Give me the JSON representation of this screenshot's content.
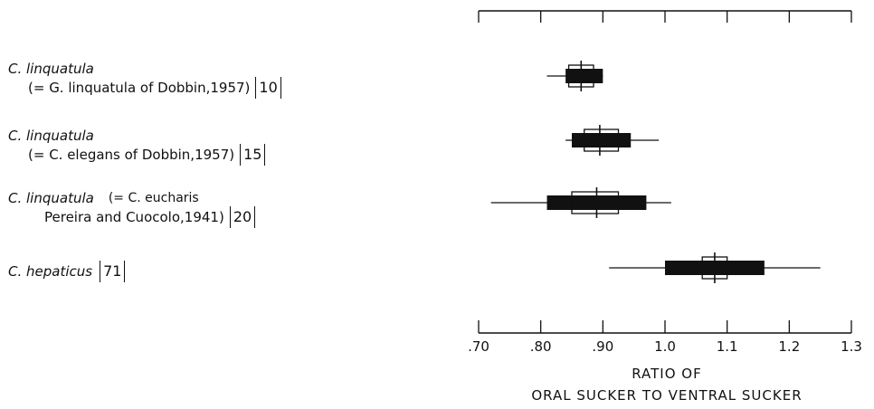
{
  "chart_data": {
    "type": "box",
    "xlabel_line1": "RATIO OF",
    "xlabel_line2": "ORAL  SUCKER  TO  VENTRAL  SUCKER",
    "xlim": [
      0.7,
      1.3
    ],
    "ticks": [
      0.7,
      0.8,
      0.9,
      1.0,
      1.1,
      1.2,
      1.3
    ],
    "tick_labels": [
      ".70",
      ".80",
      ".90",
      "1.0",
      "1.1",
      "1.2",
      "1.3"
    ],
    "series": [
      {
        "label_line1": "C. linquatula",
        "label_line2": "(= G. linquatula of Dobbin,1957)",
        "n_label": "10",
        "range": [
          0.81,
          0.9
        ],
        "sd": [
          0.84,
          0.9
        ],
        "ci": [
          0.845,
          0.885
        ],
        "mean": 0.865
      },
      {
        "label_line1": "C. linquatula",
        "label_line2": "(= C. elegans of Dobbin,1957)",
        "n_label": "15",
        "range": [
          0.84,
          0.99
        ],
        "sd": [
          0.85,
          0.945
        ],
        "ci": [
          0.87,
          0.925
        ],
        "mean": 0.895
      },
      {
        "label_line1": "C. linquatula",
        "label_line1_extra": "(= C. eucharis",
        "label_line2": "Pereira and Cuocolo,1941)",
        "n_label": "20",
        "range": [
          0.72,
          1.01
        ],
        "sd": [
          0.81,
          0.97
        ],
        "ci": [
          0.85,
          0.925
        ],
        "mean": 0.89
      },
      {
        "label_line1": "C. hepaticus",
        "label_line2": "",
        "n_label": "71",
        "range": [
          0.91,
          1.25
        ],
        "sd": [
          1.0,
          1.16
        ],
        "ci": [
          1.06,
          1.1
        ],
        "mean": 1.08
      }
    ]
  }
}
